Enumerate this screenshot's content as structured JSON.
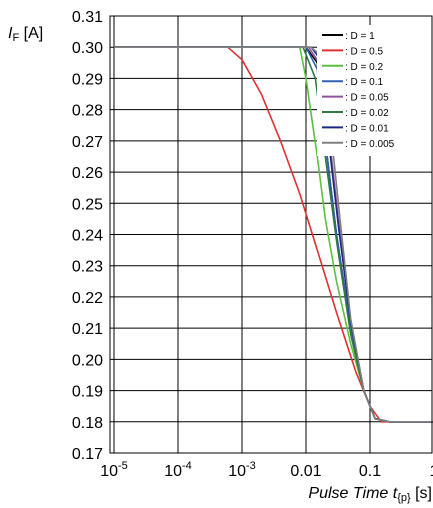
{
  "chart_data": {
    "type": "line",
    "x_scale": "log",
    "xlim": [
      1e-05,
      10
    ],
    "ylim": [
      0.17,
      0.31
    ],
    "grid": true,
    "legend_position": "top-right",
    "y_ticks": [
      "0.31",
      "0.30",
      "0.29",
      "0.28",
      "0.27",
      "0.26",
      "0.25",
      "0.24",
      "0.23",
      "0.22",
      "0.21",
      "0.20",
      "0.19",
      "0.18",
      "0.17"
    ],
    "x_ticks": [
      {
        "base": "10",
        "exp": "-5"
      },
      {
        "base": "10",
        "exp": "-4"
      },
      {
        "base": "10",
        "exp": "-3"
      },
      {
        "base": "0.01",
        "exp": ""
      },
      {
        "base": "0.1",
        "exp": ""
      },
      {
        "base": "1",
        "exp": ""
      }
    ],
    "ylabel": {
      "main": "I",
      "sub": "F",
      "unit": " [A]"
    },
    "xlabel": {
      "main": "Pulse Time t",
      "sub": "{p}",
      "unit": " [s]"
    },
    "series": [
      {
        "name": ": D = 1",
        "color": "#000000",
        "x": [
          1e-05,
          0.01,
          0.015,
          0.02,
          0.03,
          0.05,
          0.08,
          0.12,
          0.2,
          10
        ],
        "y": [
          0.3,
          0.3,
          0.295,
          0.27,
          0.24,
          0.21,
          0.19,
          0.181,
          0.18,
          0.18
        ]
      },
      {
        "name": ": D = 0.5",
        "color": "#e03030",
        "x": [
          1e-05,
          0.0006,
          0.001,
          0.002,
          0.004,
          0.008,
          0.015,
          0.03,
          0.06,
          0.1,
          0.15,
          10
        ],
        "y": [
          0.3,
          0.3,
          0.296,
          0.285,
          0.27,
          0.253,
          0.235,
          0.215,
          0.196,
          0.185,
          0.18,
          0.18
        ]
      },
      {
        "name": ": D = 0.2",
        "color": "#5cc040",
        "x": [
          1e-05,
          0.008,
          0.01,
          0.015,
          0.02,
          0.03,
          0.05,
          0.08,
          0.12,
          0.2,
          10
        ],
        "y": [
          0.3,
          0.3,
          0.29,
          0.265,
          0.245,
          0.225,
          0.205,
          0.19,
          0.181,
          0.18,
          0.18
        ]
      },
      {
        "name": ": D = 0.1",
        "color": "#3060b0",
        "x": [
          1e-05,
          0.01,
          0.015,
          0.02,
          0.03,
          0.05,
          0.08,
          0.12,
          0.2,
          10
        ],
        "y": [
          0.3,
          0.3,
          0.293,
          0.27,
          0.24,
          0.21,
          0.19,
          0.181,
          0.18,
          0.18
        ]
      },
      {
        "name": ": D = 0.05",
        "color": "#9050a0",
        "x": [
          1e-05,
          0.011,
          0.016,
          0.022,
          0.032,
          0.05,
          0.08,
          0.12,
          0.2,
          10
        ],
        "y": [
          0.3,
          0.3,
          0.295,
          0.275,
          0.245,
          0.212,
          0.19,
          0.181,
          0.18,
          0.18
        ]
      },
      {
        "name": ": D = 0.02",
        "color": "#2e7a40",
        "x": [
          1e-05,
          0.009,
          0.014,
          0.02,
          0.03,
          0.05,
          0.08,
          0.12,
          0.2,
          10
        ],
        "y": [
          0.3,
          0.3,
          0.29,
          0.265,
          0.238,
          0.208,
          0.19,
          0.181,
          0.18,
          0.18
        ]
      },
      {
        "name": ": D = 0.01",
        "color": "#1a2a80",
        "x": [
          1e-05,
          0.012,
          0.017,
          0.022,
          0.032,
          0.05,
          0.08,
          0.12,
          0.2,
          10
        ],
        "y": [
          0.3,
          0.3,
          0.296,
          0.272,
          0.243,
          0.212,
          0.19,
          0.181,
          0.18,
          0.18
        ]
      },
      {
        "name": ": D = 0.005",
        "color": "#808080",
        "x": [
          1e-05,
          0.012,
          0.018,
          0.024,
          0.034,
          0.05,
          0.08,
          0.12,
          0.2,
          10
        ],
        "y": [
          0.3,
          0.3,
          0.297,
          0.275,
          0.245,
          0.213,
          0.19,
          0.181,
          0.18,
          0.18
        ]
      }
    ]
  }
}
